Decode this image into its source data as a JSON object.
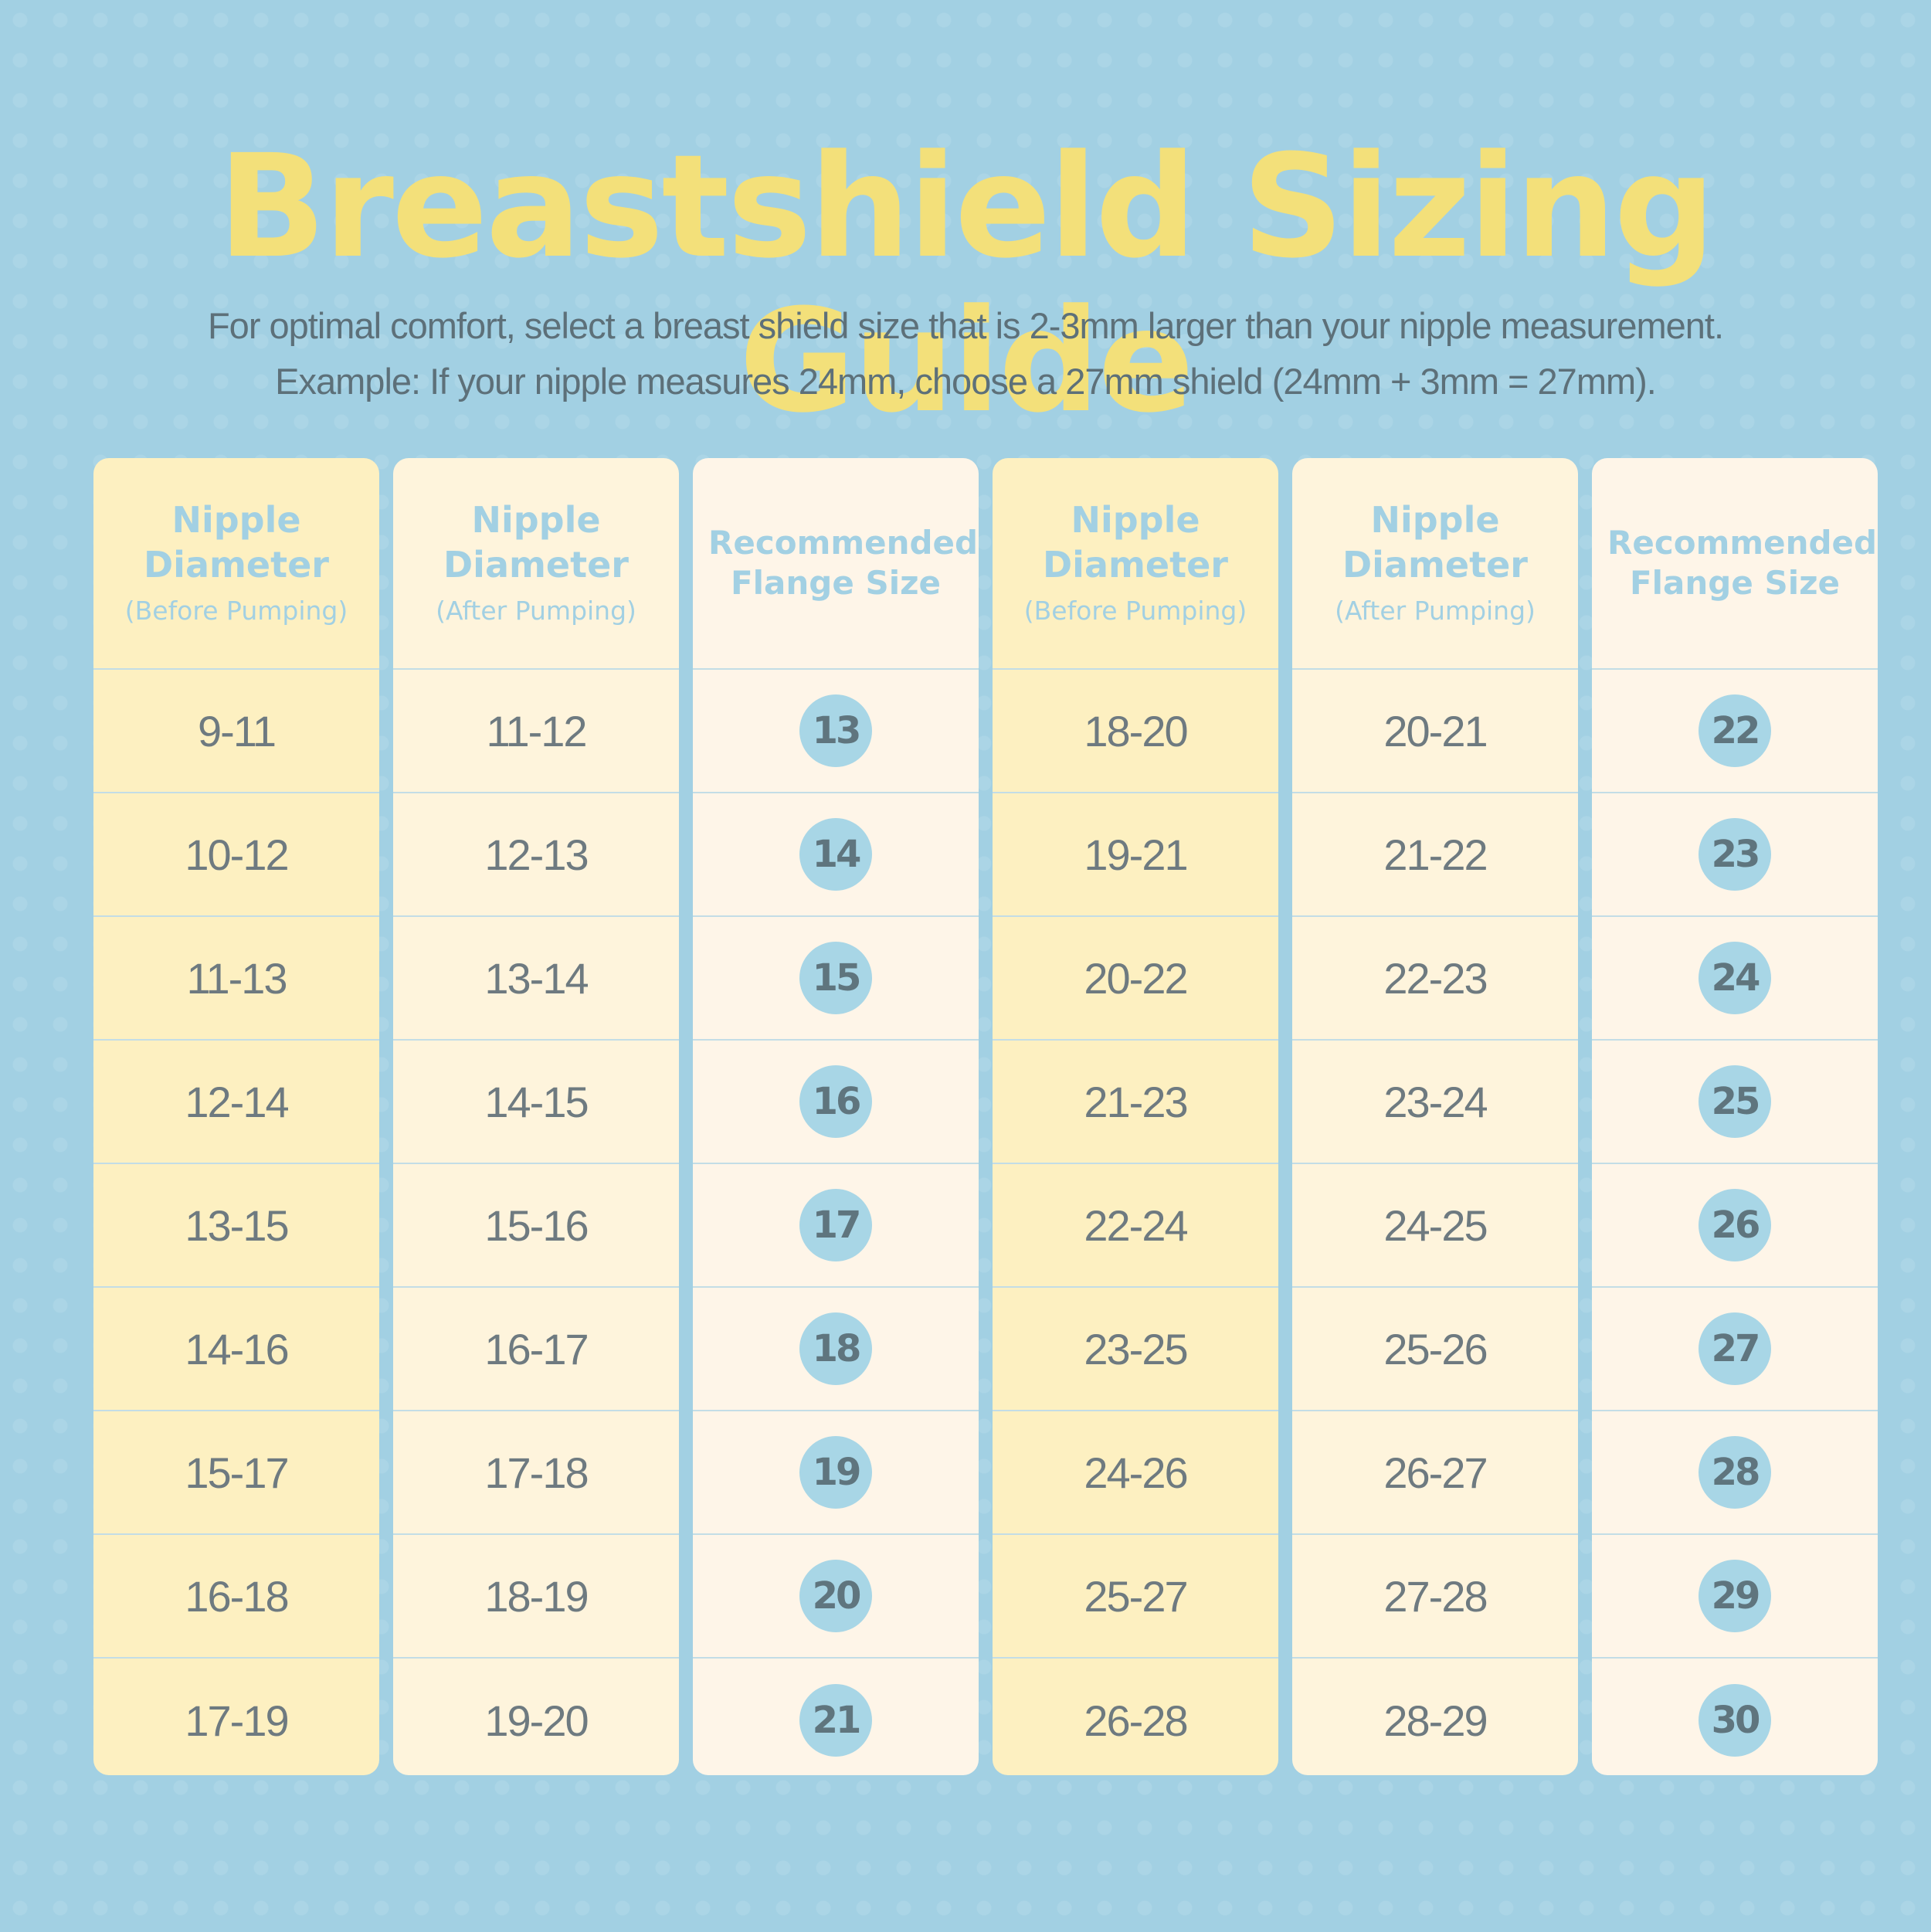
{
  "title": "Breastshield Sizing Guide",
  "subtitle": {
    "line1": "For optimal comfort, select a breast shield size that is 2-3mm larger than your nipple measurement.",
    "line2": "Example: If your nipple measures 24mm, choose a 27mm shield (24mm + 3mm = 27mm)."
  },
  "columns": [
    {
      "title": "Nipple Diameter",
      "note": "(Before Pumping)",
      "type": "range",
      "values": [
        "9-11",
        "10-12",
        "11-13",
        "12-14",
        "13-15",
        "14-16",
        "15-17",
        "16-18",
        "17-19"
      ]
    },
    {
      "title": "Nipple Diameter",
      "note": "(After Pumping)",
      "type": "range",
      "values": [
        "11-12",
        "12-13",
        "13-14",
        "14-15",
        "15-16",
        "16-17",
        "17-18",
        "18-19",
        "19-20"
      ]
    },
    {
      "title": "Recommended Flange Size",
      "note": "",
      "type": "size",
      "values": [
        "13",
        "14",
        "15",
        "16",
        "17",
        "18",
        "19",
        "20",
        "21"
      ]
    },
    {
      "title": "Nipple Diameter",
      "note": "(Before Pumping)",
      "type": "range",
      "values": [
        "18-20",
        "19-21",
        "20-22",
        "21-23",
        "22-24",
        "23-25",
        "24-26",
        "25-27",
        "26-28"
      ]
    },
    {
      "title": "Nipple Diameter",
      "note": "(After Pumping)",
      "type": "range",
      "values": [
        "20-21",
        "21-22",
        "22-23",
        "23-24",
        "24-25",
        "25-26",
        "26-27",
        "27-28",
        "28-29"
      ]
    },
    {
      "title": "Recommended Flange Size",
      "note": "",
      "type": "size",
      "values": [
        "22",
        "23",
        "24",
        "25",
        "26",
        "27",
        "28",
        "29",
        "30"
      ]
    }
  ],
  "colors": {
    "background": "#a2d0e3",
    "title": "#f3e07a",
    "header_text": "#a2d0e3",
    "cell_text": "#6e7a80",
    "badge": "#a8d6e6"
  }
}
